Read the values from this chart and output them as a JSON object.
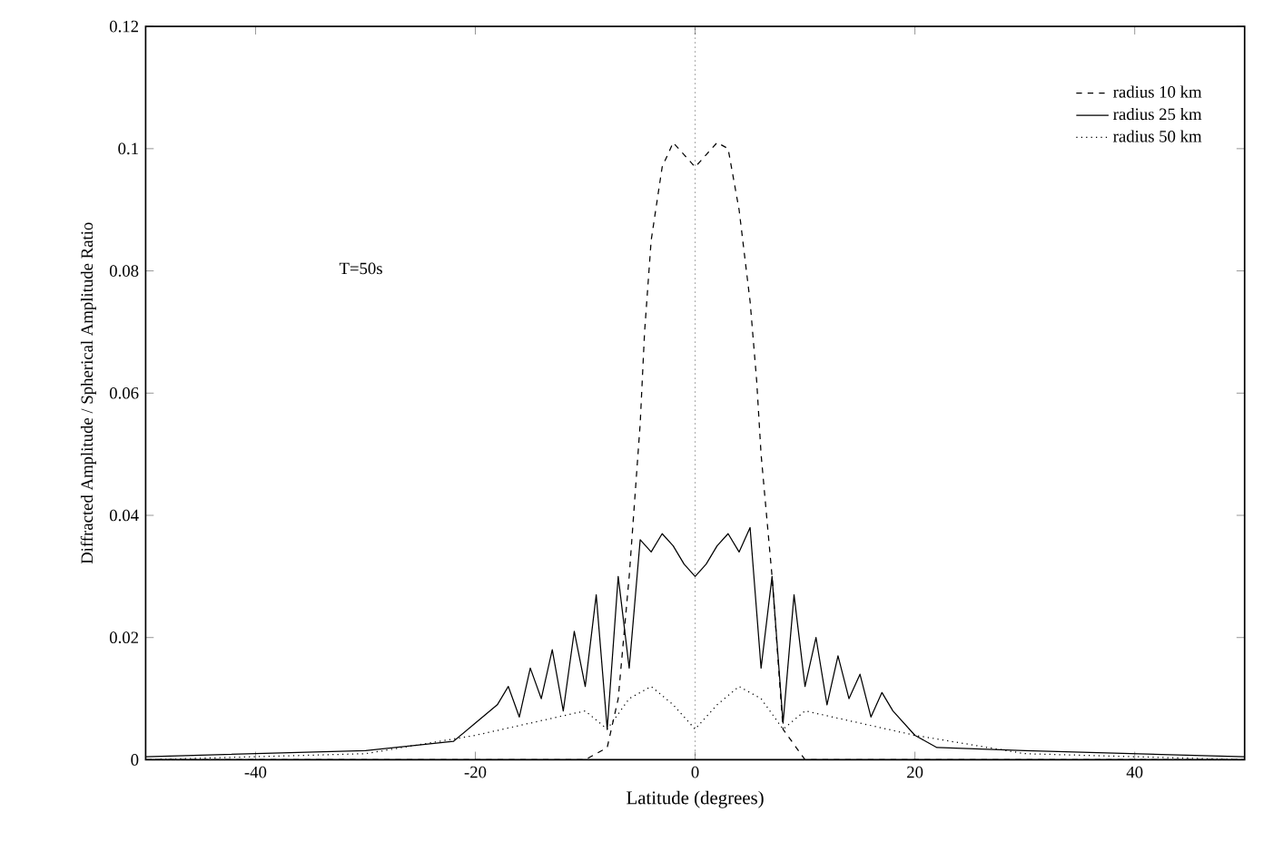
{
  "chart_data": {
    "type": "line",
    "xlabel": "Latitude (degrees)",
    "ylabel": "Diffracted Amplitude / Spherical Amplitude Ratio",
    "annotations": [
      "T=50s"
    ],
    "xlim": [
      -50,
      50
    ],
    "ylim": [
      0,
      0.12
    ],
    "xticks": [
      -40,
      -20,
      0,
      20,
      40
    ],
    "yticks": [
      0,
      0.02,
      0.04,
      0.06,
      0.08,
      0.1,
      0.12
    ],
    "legend": "top right",
    "ref_lines": [
      {
        "axis": "x",
        "value": 0,
        "line_style": "dotted",
        "color": "#000000"
      }
    ],
    "series": [
      {
        "name": "radius 10 km",
        "color": "#000000",
        "line_style": "dashed",
        "x": [
          -50,
          -10,
          -8,
          -7,
          -6,
          -5,
          -4.6,
          -4,
          -3,
          -2,
          -1,
          0,
          1,
          2,
          3,
          4,
          5,
          5.6,
          6,
          7,
          8,
          10,
          50
        ],
        "values": [
          0,
          0,
          0.002,
          0.01,
          0.03,
          0.055,
          0.07,
          0.085,
          0.097,
          0.101,
          0.099,
          0.097,
          0.099,
          0.101,
          0.1,
          0.09,
          0.075,
          0.062,
          0.05,
          0.03,
          0.005,
          0,
          0
        ]
      },
      {
        "name": "radius 25 km",
        "color": "#000000",
        "line_style": "solid",
        "x": [
          -50,
          -40,
          -30,
          -22,
          -20,
          -18,
          -17,
          -16,
          -15,
          -14,
          -13,
          -12,
          -11,
          -10,
          -9,
          -8,
          -7,
          -6,
          -5,
          -4,
          -3,
          -2,
          -1,
          0,
          1,
          2,
          3,
          4,
          5,
          6,
          7,
          8,
          9,
          10,
          11,
          12,
          13,
          14,
          15,
          16,
          17,
          18,
          19,
          20,
          21,
          22,
          30,
          40,
          50
        ],
        "values": [
          0.0005,
          0.001,
          0.0015,
          0.003,
          0.006,
          0.009,
          0.012,
          0.007,
          0.015,
          0.01,
          0.018,
          0.008,
          0.021,
          0.012,
          0.027,
          0.005,
          0.03,
          0.015,
          0.036,
          0.034,
          0.037,
          0.035,
          0.032,
          0.03,
          0.032,
          0.035,
          0.037,
          0.034,
          0.038,
          0.015,
          0.03,
          0.006,
          0.027,
          0.012,
          0.02,
          0.009,
          0.017,
          0.01,
          0.014,
          0.007,
          0.011,
          0.008,
          0.006,
          0.004,
          0.003,
          0.002,
          0.0015,
          0.001,
          0.0005
        ]
      },
      {
        "name": "radius 50 km",
        "color": "#000000",
        "line_style": "dotted",
        "x": [
          -50,
          -30,
          -20,
          -15,
          -10,
          -8,
          -6,
          -4,
          -2,
          0,
          2,
          4,
          6,
          8,
          10,
          15,
          20,
          30,
          50
        ],
        "values": [
          0,
          0.001,
          0.004,
          0.006,
          0.008,
          0.005,
          0.01,
          0.012,
          0.009,
          0.005,
          0.009,
          0.012,
          0.01,
          0.005,
          0.008,
          0.006,
          0.004,
          0.001,
          0
        ]
      }
    ]
  }
}
